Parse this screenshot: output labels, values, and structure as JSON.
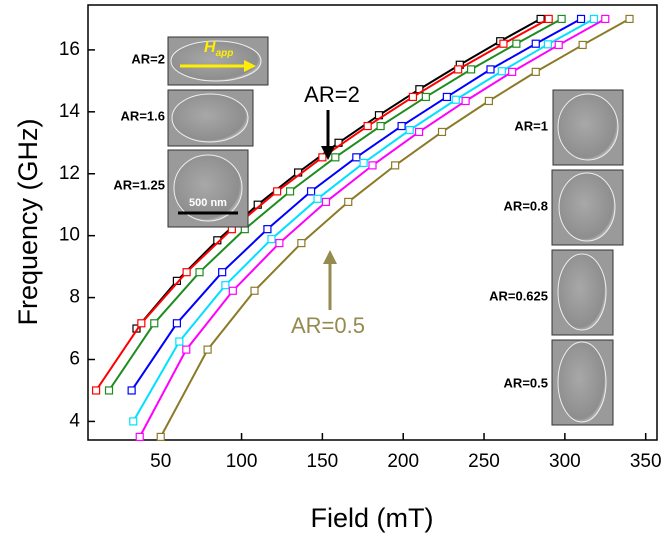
{
  "chart_data": {
    "type": "line",
    "x_label": "Field (mT)",
    "y_label": "Frequency (GHz)",
    "xlim": [
      5,
      357
    ],
    "ylim": [
      3.4,
      17.45
    ],
    "xticks": [
      50,
      100,
      150,
      200,
      250,
      300,
      350
    ],
    "yticks": [
      4,
      6,
      8,
      10,
      12,
      14,
      16
    ],
    "series": [
      {
        "color": "#000000",
        "x": [
          35,
          60,
          85,
          110,
          135,
          160,
          185,
          210,
          235,
          260,
          285
        ],
        "values": [
          7,
          8.54,
          9.85,
          11,
          12.04,
          13,
          13.89,
          14.73,
          15.52,
          16.28,
          17
        ]
      },
      {
        "color": "#ff0000",
        "x": [
          10,
          38,
          66,
          94,
          122,
          150,
          178,
          206,
          234,
          262,
          290
        ],
        "values": [
          5,
          7.17,
          8.82,
          10.21,
          11.43,
          12.53,
          13.54,
          14.48,
          15.37,
          16.2,
          17
        ]
      },
      {
        "color": "#1e8c1e",
        "x": [
          18,
          46,
          74,
          102,
          130,
          158,
          186,
          214,
          242,
          270,
          298
        ],
        "values": [
          5,
          7.17,
          8.82,
          10.21,
          11.43,
          12.53,
          13.54,
          14.48,
          15.37,
          16.2,
          17
        ]
      },
      {
        "color": "#0000ff",
        "x": [
          32,
          60,
          88,
          116,
          143,
          171,
          199,
          227,
          254,
          282,
          310
        ],
        "values": [
          5,
          7.17,
          8.82,
          10.21,
          11.43,
          12.53,
          13.54,
          14.48,
          15.37,
          16.2,
          17
        ]
      },
      {
        "color": "#00e0ff",
        "x": [
          33,
          61.5,
          90,
          118.5,
          147,
          175.5,
          204,
          232.5,
          261,
          289.5,
          318
        ],
        "values": [
          4,
          6.58,
          8.4,
          9.89,
          11.19,
          12.35,
          13.41,
          14.39,
          15.31,
          16.18,
          17
        ]
      },
      {
        "color": "#ff00ff",
        "x": [
          37,
          65.8,
          94.6,
          123.4,
          152.2,
          181,
          209.8,
          238.6,
          267.4,
          296.2,
          325
        ],
        "values": [
          3.5,
          6.32,
          8.22,
          9.76,
          11.09,
          12.27,
          13.35,
          14.35,
          15.29,
          16.16,
          17
        ]
      },
      {
        "color": "#8b7a28",
        "x": [
          50,
          79,
          108,
          137,
          166,
          195,
          224,
          253,
          282,
          311,
          340
        ],
        "values": [
          3.5,
          6.32,
          8.22,
          9.76,
          11.09,
          12.27,
          13.35,
          14.35,
          15.29,
          16.16,
          17
        ]
      }
    ],
    "insets": [
      "AR=2",
      "AR=1.6",
      "AR=1.25",
      "AR=1",
      "AR=0.8",
      "AR=0.625",
      "AR=0.5"
    ],
    "field_symbol": "H",
    "field_subscript": "app",
    "scale_bar": "500 nm",
    "annotations": [
      {
        "text": "AR=2",
        "color": "#000000"
      },
      {
        "text": "AR=0.5",
        "color": "#958a4f"
      }
    ]
  }
}
